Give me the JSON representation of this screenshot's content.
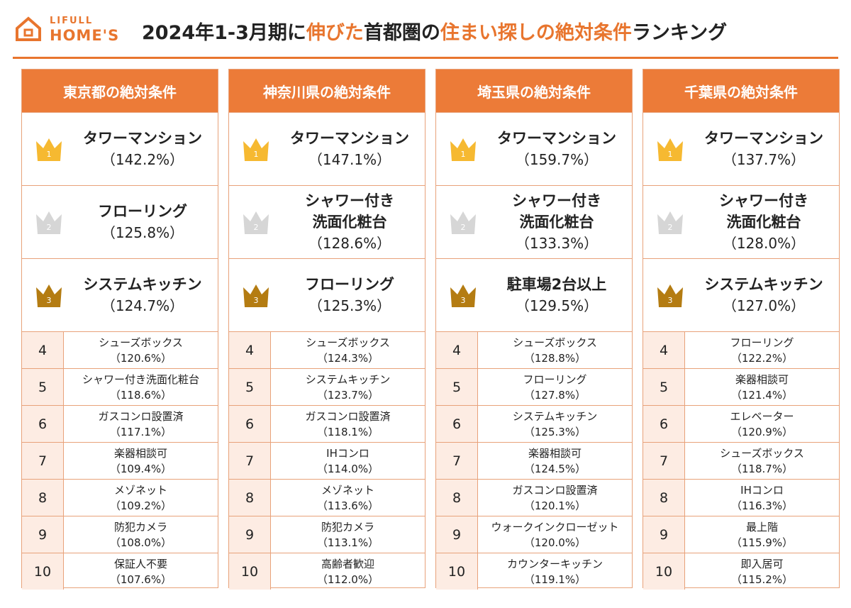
{
  "header": {
    "logo_top": "LIFULL",
    "logo_bottom": "HOME'S",
    "title": [
      {
        "text": "2024年1-3月期に",
        "highlight": false
      },
      {
        "text": "伸びた",
        "highlight": true
      },
      {
        "text": "首都圏の",
        "highlight": false
      },
      {
        "text": "住まい探しの絶対条件",
        "highlight": true
      },
      {
        "text": "ランキング",
        "highlight": false
      }
    ]
  },
  "columns": [
    {
      "title": "東京都の絶対条件",
      "top": [
        {
          "rank": 1,
          "name": [
            "タワーマンション"
          ],
          "pct": "（142.2%）"
        },
        {
          "rank": 2,
          "name": [
            "フローリング"
          ],
          "pct": "（125.8%）"
        },
        {
          "rank": 3,
          "name": [
            "システムキッチン"
          ],
          "pct": "（124.7%）"
        }
      ],
      "rest": [
        {
          "rank": 4,
          "name": "シューズボックス",
          "pct": "（120.6%）"
        },
        {
          "rank": 5,
          "name": "シャワー付き洗面化粧台",
          "pct": "（118.6%）"
        },
        {
          "rank": 6,
          "name": "ガスコンロ設置済",
          "pct": "（117.1%）"
        },
        {
          "rank": 7,
          "name": "楽器相談可",
          "pct": "（109.4%）"
        },
        {
          "rank": 8,
          "name": "メゾネット",
          "pct": "（109.2%）"
        },
        {
          "rank": 9,
          "name": "防犯カメラ",
          "pct": "（108.0%）"
        },
        {
          "rank": 10,
          "name": "保証人不要",
          "pct": "（107.6%）"
        }
      ]
    },
    {
      "title": "神奈川県の絶対条件",
      "top": [
        {
          "rank": 1,
          "name": [
            "タワーマンション"
          ],
          "pct": "（147.1%）"
        },
        {
          "rank": 2,
          "name": [
            "シャワー付き",
            "洗面化粧台"
          ],
          "pct": "（128.6%）"
        },
        {
          "rank": 3,
          "name": [
            "フローリング"
          ],
          "pct": "（125.3%）"
        }
      ],
      "rest": [
        {
          "rank": 4,
          "name": "シューズボックス",
          "pct": "（124.3%）"
        },
        {
          "rank": 5,
          "name": "システムキッチン",
          "pct": "（123.7%）"
        },
        {
          "rank": 6,
          "name": "ガスコンロ設置済",
          "pct": "（118.1%）"
        },
        {
          "rank": 7,
          "name": "IHコンロ",
          "pct": "（114.0%）"
        },
        {
          "rank": 8,
          "name": "メゾネット",
          "pct": "（113.6%）"
        },
        {
          "rank": 9,
          "name": "防犯カメラ",
          "pct": "（113.1%）"
        },
        {
          "rank": 10,
          "name": "高齢者歓迎",
          "pct": "（112.0%）"
        }
      ]
    },
    {
      "title": "埼玉県の絶対条件",
      "top": [
        {
          "rank": 1,
          "name": [
            "タワーマンション"
          ],
          "pct": "（159.7%）"
        },
        {
          "rank": 2,
          "name": [
            "シャワー付き",
            "洗面化粧台"
          ],
          "pct": "（133.3%）"
        },
        {
          "rank": 3,
          "name": [
            "駐車場2台以上"
          ],
          "pct": "（129.5%）"
        }
      ],
      "rest": [
        {
          "rank": 4,
          "name": "シューズボックス",
          "pct": "（128.8%）"
        },
        {
          "rank": 5,
          "name": "フローリング",
          "pct": "（127.8%）"
        },
        {
          "rank": 6,
          "name": "システムキッチン",
          "pct": "（125.3%）"
        },
        {
          "rank": 7,
          "name": "楽器相談可",
          "pct": "（124.5%）"
        },
        {
          "rank": 8,
          "name": "ガスコンロ設置済",
          "pct": "（120.1%）"
        },
        {
          "rank": 9,
          "name": "ウォークインクローゼット",
          "pct": "（120.0%）"
        },
        {
          "rank": 10,
          "name": "カウンターキッチン",
          "pct": "（119.1%）"
        }
      ]
    },
    {
      "title": "千葉県の絶対条件",
      "top": [
        {
          "rank": 1,
          "name": [
            "タワーマンション"
          ],
          "pct": "（137.7%）"
        },
        {
          "rank": 2,
          "name": [
            "シャワー付き",
            "洗面化粧台"
          ],
          "pct": "（128.0%）"
        },
        {
          "rank": 3,
          "name": [
            "システムキッチン"
          ],
          "pct": "（127.0%）"
        }
      ],
      "rest": [
        {
          "rank": 4,
          "name": "フローリング",
          "pct": "（122.2%）"
        },
        {
          "rank": 5,
          "name": "楽器相談可",
          "pct": "（121.4%）"
        },
        {
          "rank": 6,
          "name": "エレベーター",
          "pct": "（120.9%）"
        },
        {
          "rank": 7,
          "name": "シューズボックス",
          "pct": "（118.7%）"
        },
        {
          "rank": 8,
          "name": "IHコンロ",
          "pct": "（116.3%）"
        },
        {
          "rank": 9,
          "name": "最上階",
          "pct": "（115.9%）"
        },
        {
          "rank": 10,
          "name": "即入居可",
          "pct": "（115.2%）"
        }
      ]
    }
  ]
}
